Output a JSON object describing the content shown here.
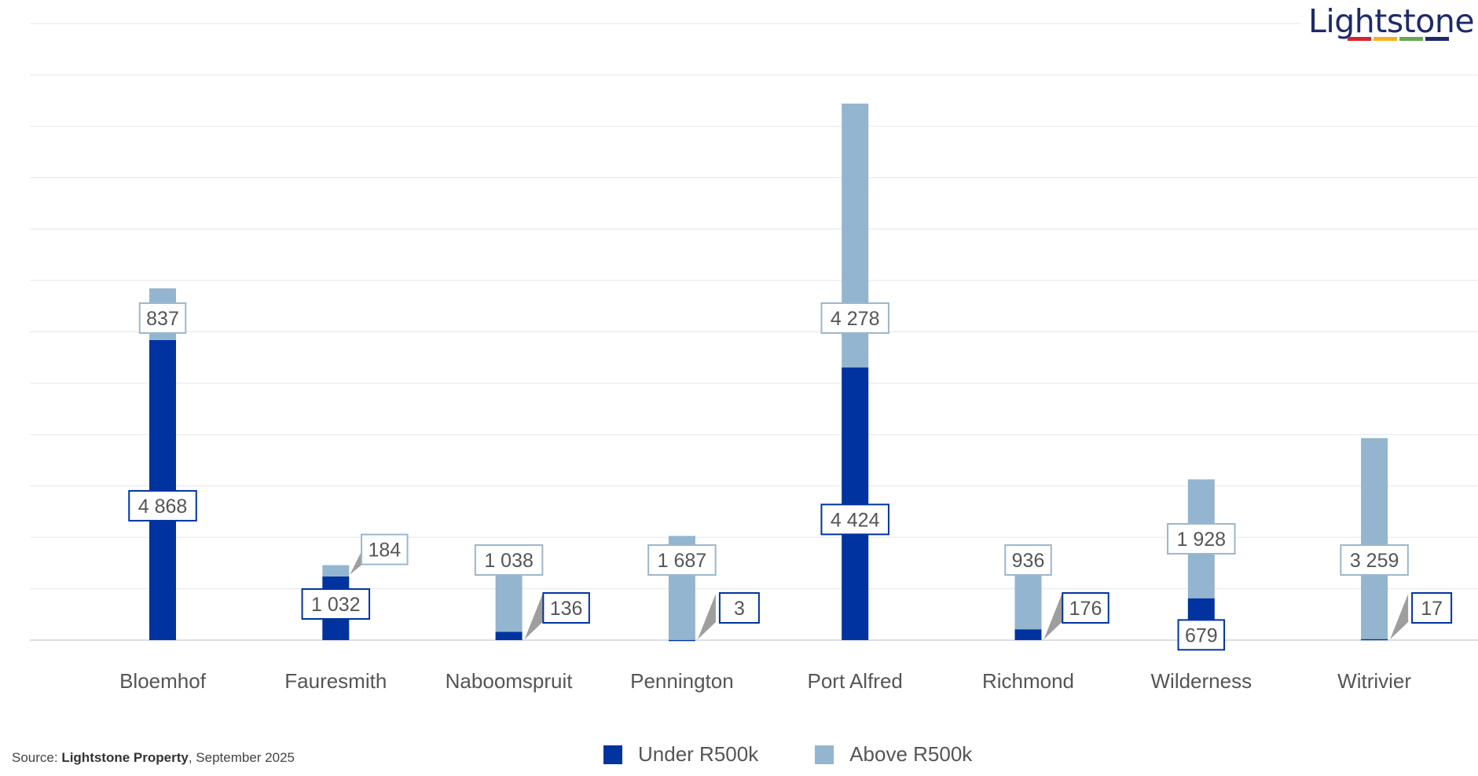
{
  "chart_data": {
    "type": "bar",
    "stacked": true,
    "categories": [
      "Bloemhof",
      "Fauresmith",
      "Naboomspruit",
      "Pennington",
      "Port Alfred",
      "Richmond",
      "Wilderness",
      "Witrivier"
    ],
    "series": [
      {
        "name": "Under R500k",
        "color": "#0033a0",
        "values": [
          4868,
          1032,
          136,
          3,
          4424,
          176,
          679,
          17
        ],
        "labels": [
          "4 868",
          "1 032",
          "136",
          "3",
          "4 424",
          "176",
          "679",
          "17"
        ]
      },
      {
        "name": "Above R500k",
        "color": "#93b5cf",
        "values": [
          837,
          184,
          1038,
          1687,
          4278,
          936,
          1928,
          3259
        ],
        "labels": [
          "837",
          "184",
          "1 038",
          "1 687",
          "4 278",
          "936",
          "1 928",
          "3 259"
        ]
      }
    ],
    "ylim": [
      0,
      10000
    ],
    "grid": true,
    "legend_position": "bottom-center"
  },
  "logo": {
    "text": "Lightstone",
    "bar_colors": [
      "#d6252a",
      "#f0b323",
      "#6aa84f",
      "#1d2a6b"
    ]
  },
  "source": {
    "prefix": "Source: ",
    "name": "Lightstone Property",
    "suffix": ", September 2025"
  }
}
